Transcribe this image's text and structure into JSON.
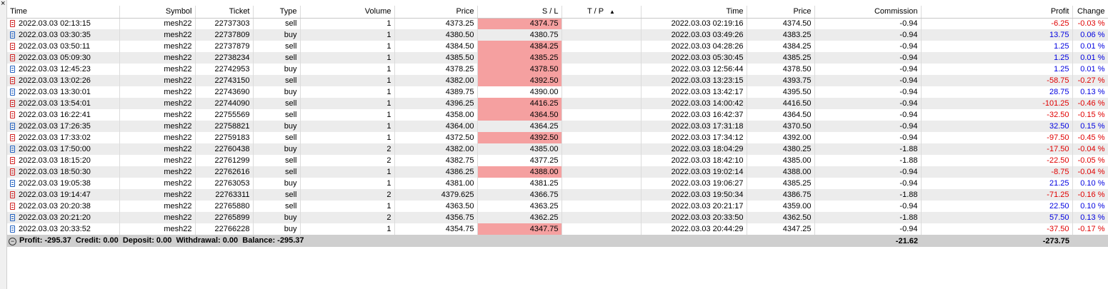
{
  "close_glyph": "×",
  "columns": [
    "Time",
    "Symbol",
    "Ticket",
    "Type",
    "Volume",
    "Price",
    "S / L",
    "T / P",
    "Time",
    "Price",
    "Commission",
    "Profit",
    "Change"
  ],
  "sort_arrow": "▲",
  "rows": [
    [
      "2022.03.03 02:13:15",
      "mesh22",
      "22737303",
      "sell",
      "1",
      "4373.25",
      "4374.75",
      "",
      "2022.03.03 02:19:16",
      "4374.50",
      "-0.94",
      "-6.25",
      "-0.03 %"
    ],
    [
      "2022.03.03 03:30:35",
      "mesh22",
      "22737809",
      "buy",
      "1",
      "4380.50",
      "4380.75",
      "",
      "2022.03.03 03:49:26",
      "4383.25",
      "-0.94",
      "13.75",
      "0.06 %"
    ],
    [
      "2022.03.03 03:50:11",
      "mesh22",
      "22737879",
      "sell",
      "1",
      "4384.50",
      "4384.25",
      "",
      "2022.03.03 04:28:26",
      "4384.25",
      "-0.94",
      "1.25",
      "0.01 %"
    ],
    [
      "2022.03.03 05:09:30",
      "mesh22",
      "22738234",
      "sell",
      "1",
      "4385.50",
      "4385.25",
      "",
      "2022.03.03 05:30:45",
      "4385.25",
      "-0.94",
      "1.25",
      "0.01 %"
    ],
    [
      "2022.03.03 12:45:23",
      "mesh22",
      "22742953",
      "buy",
      "1",
      "4378.25",
      "4378.50",
      "",
      "2022.03.03 12:56:44",
      "4378.50",
      "-0.94",
      "1.25",
      "0.01 %"
    ],
    [
      "2022.03.03 13:02:26",
      "mesh22",
      "22743150",
      "sell",
      "1",
      "4382.00",
      "4392.50",
      "",
      "2022.03.03 13:23:15",
      "4393.75",
      "-0.94",
      "-58.75",
      "-0.27 %"
    ],
    [
      "2022.03.03 13:30:01",
      "mesh22",
      "22743690",
      "buy",
      "1",
      "4389.75",
      "4390.00",
      "",
      "2022.03.03 13:42:17",
      "4395.50",
      "-0.94",
      "28.75",
      "0.13 %"
    ],
    [
      "2022.03.03 13:54:01",
      "mesh22",
      "22744090",
      "sell",
      "1",
      "4396.25",
      "4416.25",
      "",
      "2022.03.03 14:00:42",
      "4416.50",
      "-0.94",
      "-101.25",
      "-0.46 %"
    ],
    [
      "2022.03.03 16:22:41",
      "mesh22",
      "22755569",
      "sell",
      "1",
      "4358.00",
      "4364.50",
      "",
      "2022.03.03 16:42:37",
      "4364.50",
      "-0.94",
      "-32.50",
      "-0.15 %"
    ],
    [
      "2022.03.03 17:26:35",
      "mesh22",
      "22758821",
      "buy",
      "1",
      "4364.00",
      "4364.25",
      "",
      "2022.03.03 17:31:18",
      "4370.50",
      "-0.94",
      "32.50",
      "0.15 %"
    ],
    [
      "2022.03.03 17:33:02",
      "mesh22",
      "22759183",
      "sell",
      "1",
      "4372.50",
      "4392.50",
      "",
      "2022.03.03 17:34:12",
      "4392.00",
      "-0.94",
      "-97.50",
      "-0.45 %"
    ],
    [
      "2022.03.03 17:50:00",
      "mesh22",
      "22760438",
      "buy",
      "2",
      "4382.00",
      "4385.00",
      "",
      "2022.03.03 18:04:29",
      "4380.25",
      "-1.88",
      "-17.50",
      "-0.04 %"
    ],
    [
      "2022.03.03 18:15:20",
      "mesh22",
      "22761299",
      "sell",
      "2",
      "4382.75",
      "4377.25",
      "",
      "2022.03.03 18:42:10",
      "4385.00",
      "-1.88",
      "-22.50",
      "-0.05 %"
    ],
    [
      "2022.03.03 18:50:30",
      "mesh22",
      "22762616",
      "sell",
      "1",
      "4386.25",
      "4388.00",
      "",
      "2022.03.03 19:02:14",
      "4388.00",
      "-0.94",
      "-8.75",
      "-0.04 %"
    ],
    [
      "2022.03.03 19:05:38",
      "mesh22",
      "22763053",
      "buy",
      "1",
      "4381.00",
      "4381.25",
      "",
      "2022.03.03 19:06:27",
      "4385.25",
      "-0.94",
      "21.25",
      "0.10 %"
    ],
    [
      "2022.03.03 19:14:47",
      "mesh22",
      "22763311",
      "sell",
      "2",
      "4379.625",
      "4366.75",
      "",
      "2022.03.03 19:50:34",
      "4386.75",
      "-1.88",
      "-71.25",
      "-0.16 %"
    ],
    [
      "2022.03.03 20:20:38",
      "mesh22",
      "22765880",
      "sell",
      "1",
      "4363.50",
      "4363.25",
      "",
      "2022.03.03 20:21:17",
      "4359.00",
      "-0.94",
      "22.50",
      "0.10 %"
    ],
    [
      "2022.03.03 20:21:20",
      "mesh22",
      "22765899",
      "buy",
      "2",
      "4356.75",
      "4362.25",
      "",
      "2022.03.03 20:33:50",
      "4362.50",
      "-1.88",
      "57.50",
      "0.13 %"
    ],
    [
      "2022.03.03 20:33:52",
      "mesh22",
      "22766228",
      "buy",
      "1",
      "4354.75",
      "4347.75",
      "",
      "2022.03.03 20:44:29",
      "4347.25",
      "-0.94",
      "-37.50",
      "-0.17 %"
    ]
  ],
  "sl_highlight_rows": [
    0,
    2,
    3,
    4,
    5,
    7,
    8,
    10,
    13,
    18
  ],
  "colors": {
    "sl_highlight": "#f5a0a0",
    "negative": "#e00000",
    "positive": "#0000e0",
    "sell_icon": "#d02020",
    "buy_icon": "#2060c0",
    "summary_bg": "#cfcfcf"
  },
  "summary": {
    "text": "Profit: -295.37  Credit: 0.00  Deposit: 0.00  Withdrawal: 0.00  Balance: -295.37",
    "commission": "-21.62",
    "profit": "-273.75"
  }
}
